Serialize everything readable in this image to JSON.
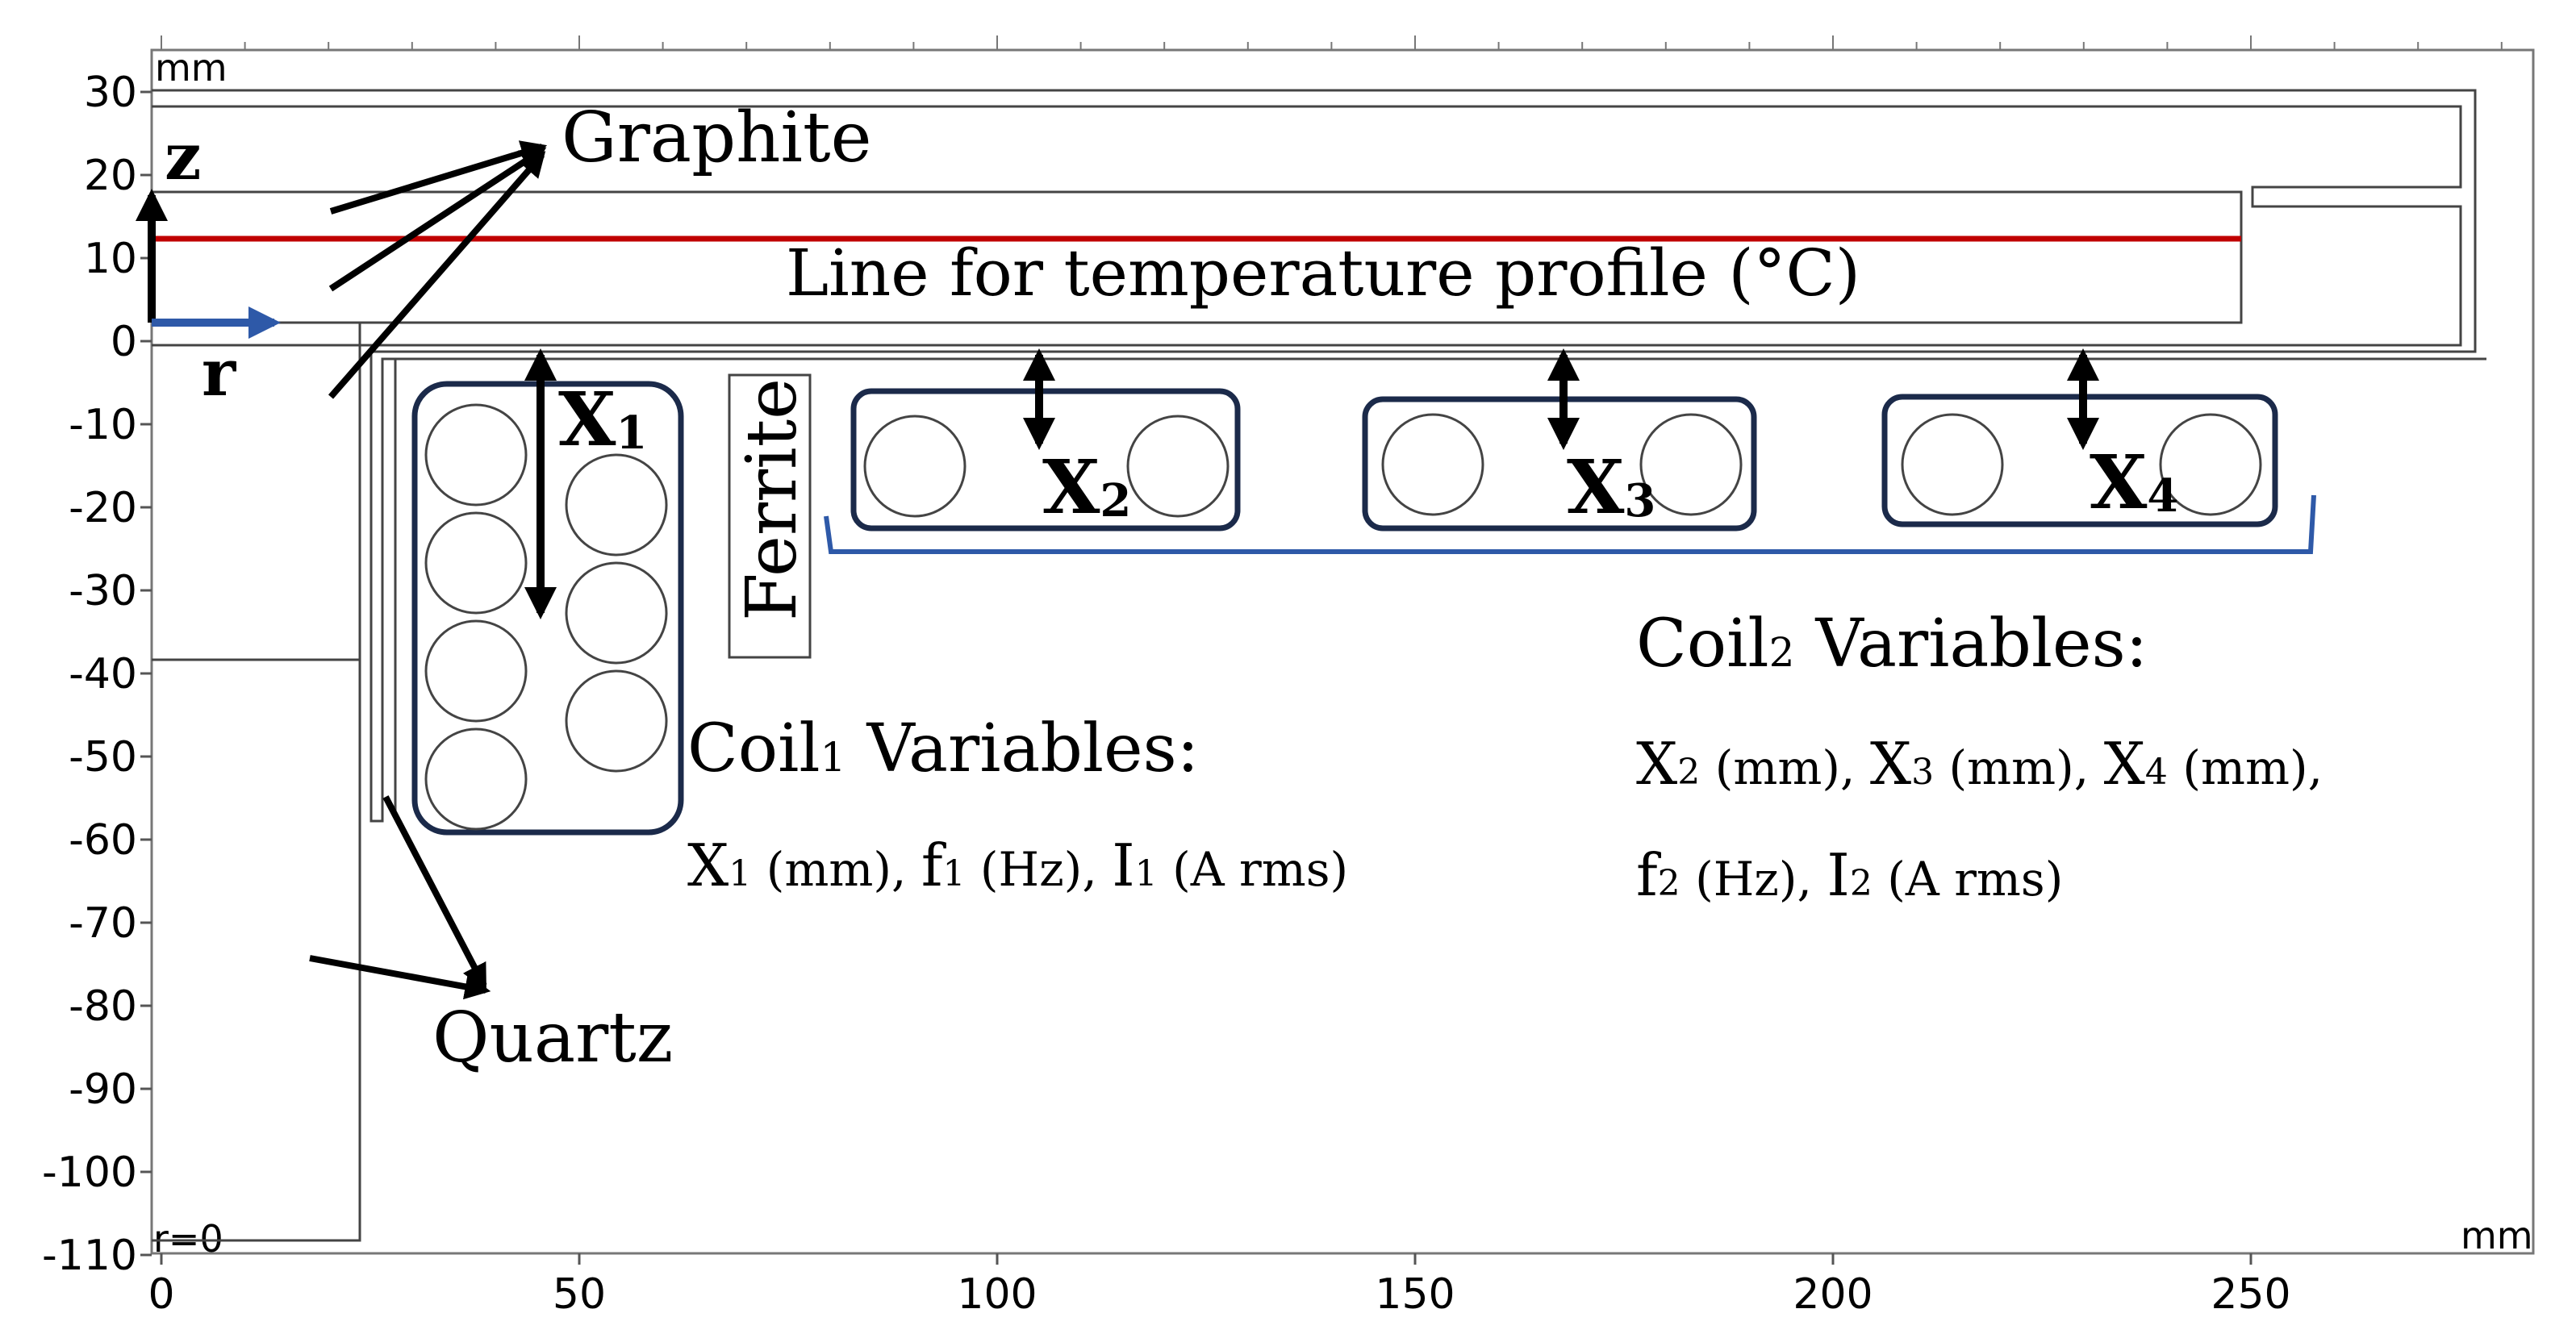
{
  "axes": {
    "y_ticks": [
      "30",
      "20",
      "10",
      "0",
      "-10",
      "-20",
      "-30",
      "-40",
      "-50",
      "-60",
      "-70",
      "-80",
      "-90",
      "-100",
      "-110"
    ],
    "x_ticks": [
      "0",
      "50",
      "100",
      "150",
      "200",
      "250"
    ],
    "unit_top_left": "mm",
    "unit_bottom_right": "mm",
    "origin_label": "r=0"
  },
  "colors": {
    "temperature_line": "#c00000",
    "r_axis": "#2e59a8",
    "coil_box": "#1b2a4a",
    "coil2_bracket": "#2e59a8"
  },
  "labels": {
    "z_axis": "z",
    "r_axis": "r",
    "graphite": "Graphite",
    "quartz": "Quartz",
    "ferrite": "Ferrite",
    "temperature_line": "Line for temperature profile (°C)",
    "x1": {
      "main": "X",
      "sub": "1"
    },
    "x2": {
      "main": "X",
      "sub": "2"
    },
    "x3": {
      "main": "X",
      "sub": "3"
    },
    "x4": {
      "main": "X",
      "sub": "4"
    }
  },
  "coil1": {
    "title": {
      "pre": "Coil",
      "sub": "1",
      "post": " Variables:"
    },
    "vars": [
      {
        "main": "X",
        "sub": "1",
        "unit": " (mm), "
      },
      {
        "main": "f",
        "sub": "1",
        "unit": " (Hz), "
      },
      {
        "main": "I",
        "sub": "1",
        "unit": " (A rms)"
      }
    ]
  },
  "coil2": {
    "title": {
      "pre": "Coil",
      "sub": "2",
      "post": " Variables:"
    },
    "vars_line1": [
      {
        "main": "X",
        "sub": "2",
        "unit": " (mm), "
      },
      {
        "main": "X",
        "sub": "3",
        "unit": " (mm), "
      },
      {
        "main": "X",
        "sub": "4",
        "unit": " (mm),"
      }
    ],
    "vars_line2": [
      {
        "main": "f",
        "sub": "2",
        "unit": " (Hz), "
      },
      {
        "main": "I",
        "sub": "2",
        "unit": " (A rms)"
      }
    ]
  }
}
